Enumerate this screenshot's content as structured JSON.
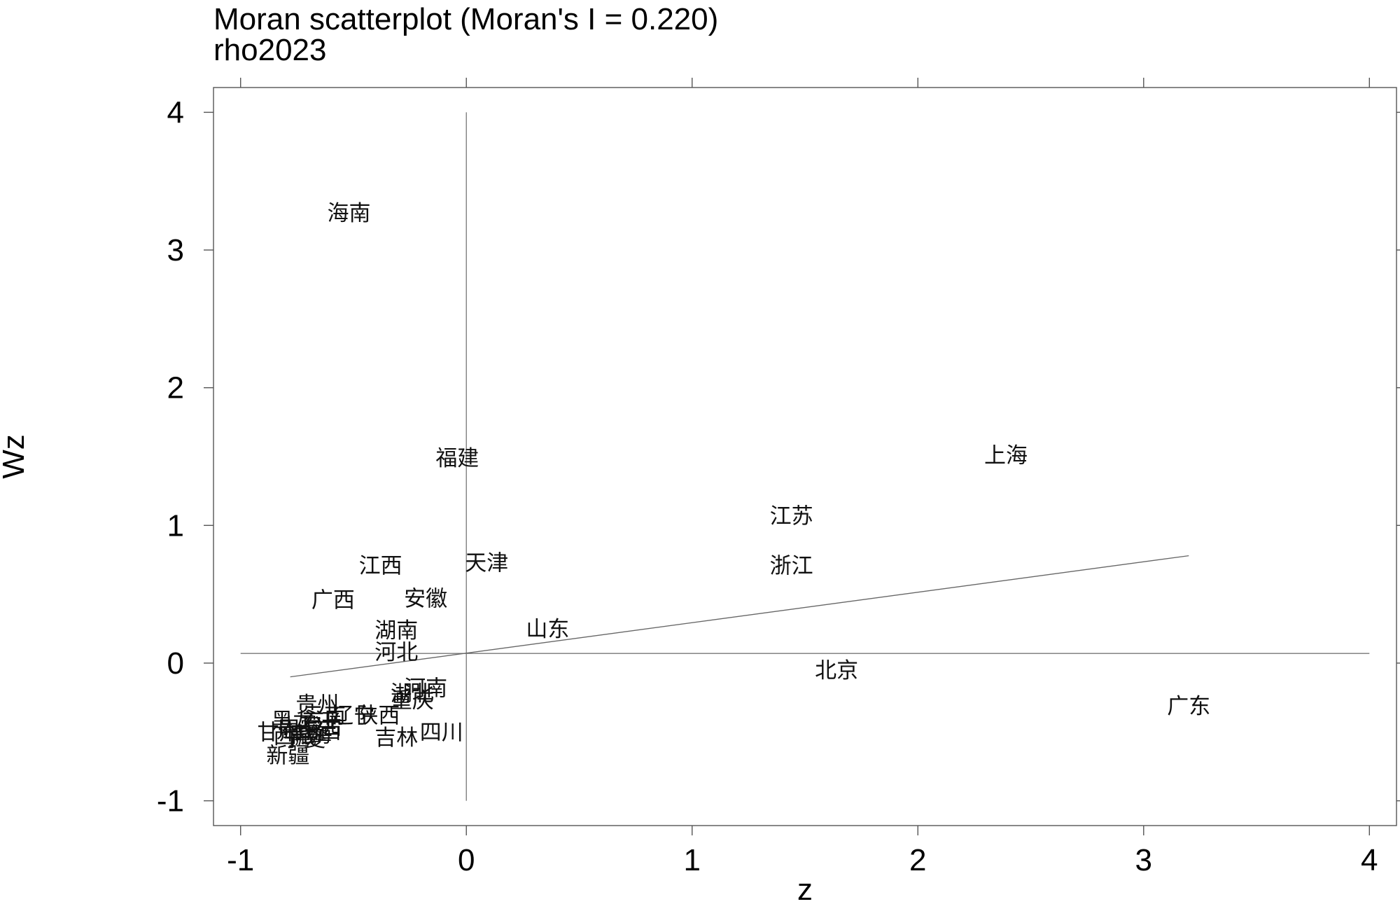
{
  "chart_data": {
    "type": "scatter",
    "title": "Moran scatterplot (Moran's I = 0.220)",
    "subtitle": "rho2023",
    "xlabel": "z",
    "ylabel": "Wz",
    "xlim": [
      -1.12,
      4.12
    ],
    "ylim": [
      -1.18,
      4.18
    ],
    "xticks": [
      -1,
      0,
      1,
      2,
      3,
      4
    ],
    "yticks": [
      -1,
      0,
      1,
      2,
      3,
      4
    ],
    "x_ref": 0,
    "y_ref": 0.07,
    "fit_line": {
      "x": [
        -0.78,
        3.2
      ],
      "y": [
        -0.1,
        0.78
      ]
    },
    "points": [
      {
        "label": "海南",
        "x": -0.52,
        "y": 3.27
      },
      {
        "label": "福建",
        "x": -0.04,
        "y": 1.49
      },
      {
        "label": "上海",
        "x": 2.39,
        "y": 1.51
      },
      {
        "label": "江苏",
        "x": 1.44,
        "y": 1.07
      },
      {
        "label": "浙江",
        "x": 1.44,
        "y": 0.71
      },
      {
        "label": "江西",
        "x": -0.38,
        "y": 0.71
      },
      {
        "label": "天津",
        "x": 0.09,
        "y": 0.73
      },
      {
        "label": "广西",
        "x": -0.59,
        "y": 0.46
      },
      {
        "label": "安徽",
        "x": -0.18,
        "y": 0.47
      },
      {
        "label": "湖南",
        "x": -0.31,
        "y": 0.24
      },
      {
        "label": "山东",
        "x": 0.36,
        "y": 0.25
      },
      {
        "label": "河北",
        "x": -0.31,
        "y": 0.08
      },
      {
        "label": "北京",
        "x": 1.64,
        "y": -0.05
      },
      {
        "label": "广东",
        "x": 3.2,
        "y": -0.31
      },
      {
        "label": "河南",
        "x": -0.18,
        "y": -0.18
      },
      {
        "label": "湖北",
        "x": -0.24,
        "y": -0.22
      },
      {
        "label": "重庆",
        "x": -0.24,
        "y": -0.27
      },
      {
        "label": "贵州",
        "x": -0.66,
        "y": -0.3
      },
      {
        "label": "云南",
        "x": -0.63,
        "y": -0.38
      },
      {
        "label": "辽宁",
        "x": -0.5,
        "y": -0.38
      },
      {
        "label": "陕西",
        "x": -0.39,
        "y": -0.38
      },
      {
        "label": "黑龙江",
        "x": -0.72,
        "y": -0.42
      },
      {
        "label": "内蒙古",
        "x": -0.69,
        "y": -0.46
      },
      {
        "label": "山西",
        "x": -0.65,
        "y": -0.49
      },
      {
        "label": "青海",
        "x": -0.69,
        "y": -0.52
      },
      {
        "label": "甘肃",
        "x": -0.83,
        "y": -0.5
      },
      {
        "label": "宁夏",
        "x": -0.72,
        "y": -0.55
      },
      {
        "label": "西藏",
        "x": -0.76,
        "y": -0.53
      },
      {
        "label": "四川",
        "x": -0.11,
        "y": -0.5
      },
      {
        "label": "吉林",
        "x": -0.31,
        "y": -0.54
      },
      {
        "label": "新疆",
        "x": -0.79,
        "y": -0.67
      }
    ]
  }
}
